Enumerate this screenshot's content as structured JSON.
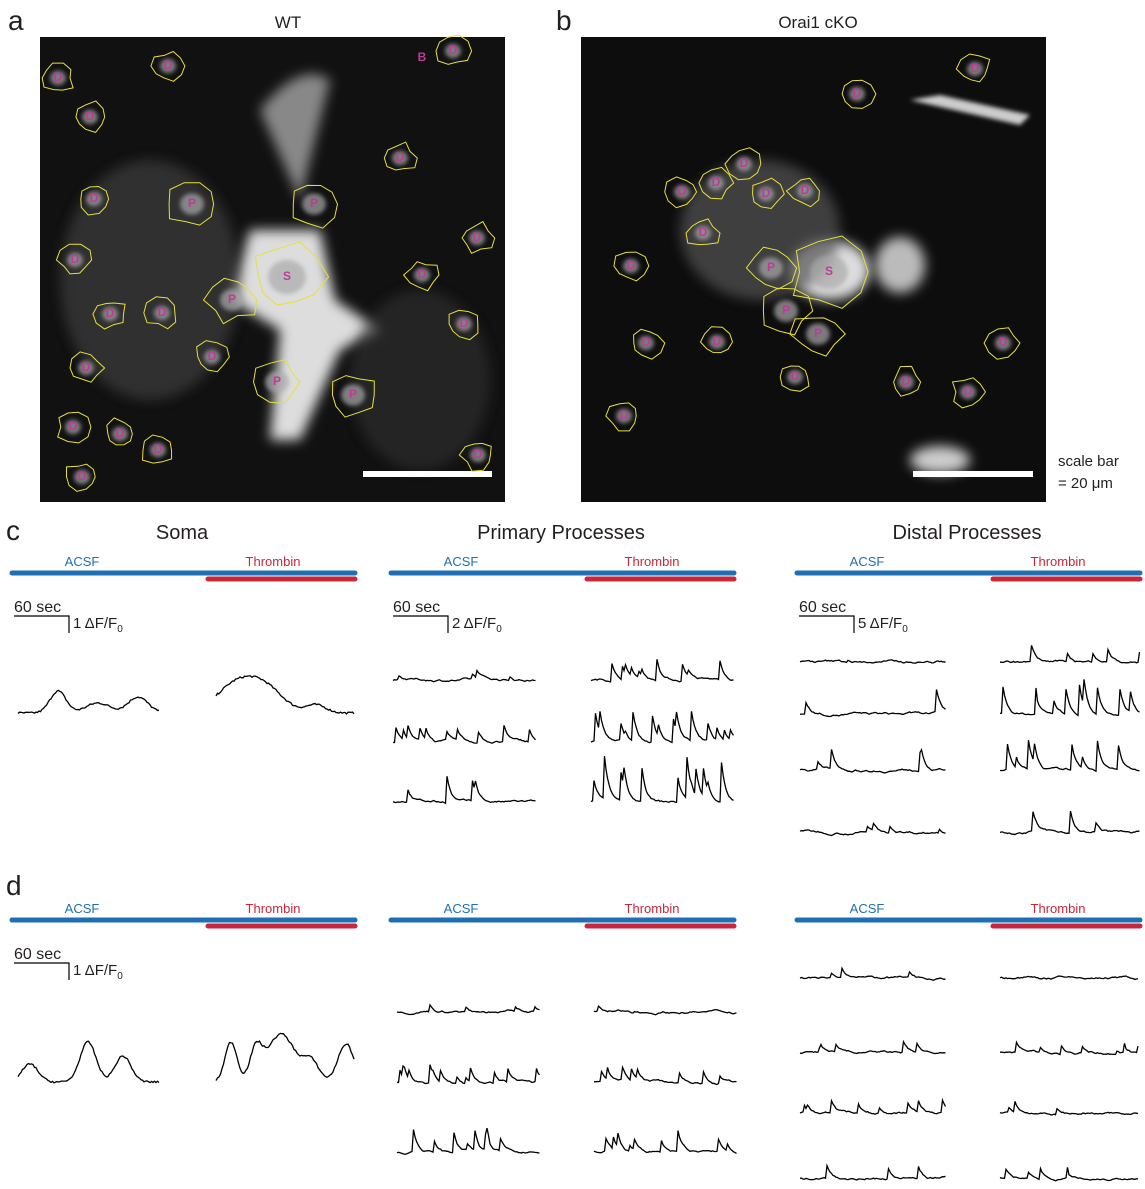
{
  "panels": {
    "a": {
      "label": "a",
      "title": "WT",
      "rois": [
        "D",
        "D",
        "B",
        "D",
        "D",
        "D",
        "D",
        "P",
        "P",
        "D",
        "D",
        "S",
        "D",
        "P",
        "D",
        "D",
        "D",
        "D",
        "D",
        "P",
        "P",
        "D",
        "D",
        "D",
        "D",
        "D"
      ]
    },
    "b": {
      "label": "b",
      "title": "Orai1 cKO",
      "rois": [
        "D",
        "D",
        "D",
        "D",
        "D",
        "D",
        "D",
        "D",
        "D",
        "P",
        "S",
        "P",
        "P",
        "D",
        "D",
        "D",
        "D",
        "D",
        "D",
        "D"
      ],
      "scale_bar": [
        "scale bar",
        "= 20 μm"
      ]
    },
    "c": {
      "label": "c",
      "groups": [
        {
          "title": "Soma",
          "conditions": [
            "ACSF",
            "Thrombin"
          ],
          "scale_time": "60 sec",
          "scale_amplitude": {
            "text": "1 ΔF/F",
            "sub": "0"
          }
        },
        {
          "title": "Primary Processes",
          "conditions": [
            "ACSF",
            "Thrombin"
          ],
          "scale_time": "60 sec",
          "scale_amplitude": {
            "text": "2 ΔF/F",
            "sub": "0"
          }
        },
        {
          "title": "Distal Processes",
          "conditions": [
            "ACSF",
            "Thrombin"
          ],
          "scale_time": "60 sec",
          "scale_amplitude": {
            "text": "5 ΔF/F",
            "sub": "0"
          }
        }
      ]
    },
    "d": {
      "label": "d",
      "groups": [
        {
          "conditions": [
            "ACSF",
            "Thrombin"
          ],
          "scale_time": "60 sec",
          "scale_amplitude": {
            "text": "1 ΔF/F",
            "sub": "0"
          }
        },
        {
          "conditions": [
            "ACSF",
            "Thrombin"
          ]
        },
        {
          "conditions": [
            "ACSF",
            "Thrombin"
          ]
        }
      ]
    }
  }
}
